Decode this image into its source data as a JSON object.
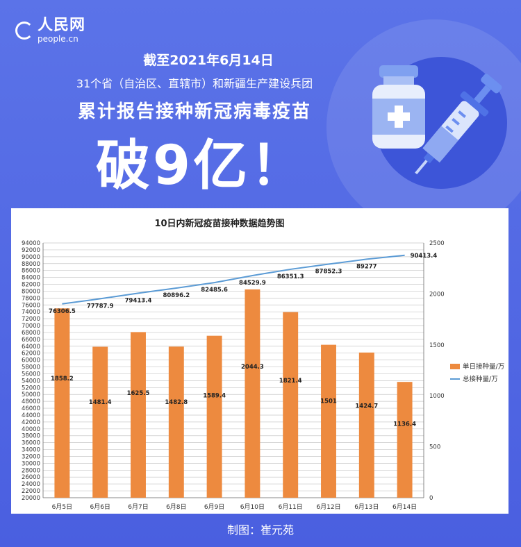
{
  "header": {
    "logo_cn": "人民网",
    "logo_en": "people.cn",
    "date_line": "截至2021年6月14日",
    "subtitle": "31个省（自治区、直辖市）和新疆生产建设兵团",
    "main_line": "累计报告接种新冠病毒疫苗",
    "big_text": "破9亿！"
  },
  "credit": "制图：崔元苑",
  "chart_data": {
    "type": "bar",
    "title": "10日内新冠疫苗接种数据趋势图",
    "categories": [
      "6月5日",
      "6月6日",
      "6月7日",
      "6月8日",
      "6月9日",
      "6月10日",
      "6月11日",
      "6月12日",
      "6月13日",
      "6月14日"
    ],
    "series": [
      {
        "name": "单日接种量/万",
        "type": "bar",
        "axis": "right",
        "color": "#ed8a3f",
        "values": [
          1858.2,
          1481.4,
          1625.5,
          1482.8,
          1589.4,
          2044.3,
          1821.4,
          1501,
          1424.7,
          1136.4
        ],
        "labels": [
          "1858.2",
          "1481.4",
          "1625.5",
          "1482.8",
          "1589.4",
          "2044.3",
          "1821.4",
          "1501",
          "1424.7",
          "1136.4"
        ]
      },
      {
        "name": "总接种量/万",
        "type": "line",
        "axis": "left",
        "color": "#5b9bd5",
        "values": [
          76306.5,
          77787.9,
          79413.4,
          80896.2,
          82485.6,
          84529.9,
          86351.3,
          87852.3,
          89277,
          90413.4
        ],
        "labels": [
          "76306.5",
          "77787.9",
          "79413.4",
          "80896.2",
          "82485.6",
          "84529.9",
          "86351.3",
          "87852.3",
          "89277",
          "90413.4"
        ]
      }
    ],
    "y_left": {
      "min": 20000,
      "max": 94000,
      "step": 2000
    },
    "y_right": {
      "min": 0,
      "max": 2500,
      "step": 500
    },
    "grid": true,
    "legend_position": "right"
  }
}
